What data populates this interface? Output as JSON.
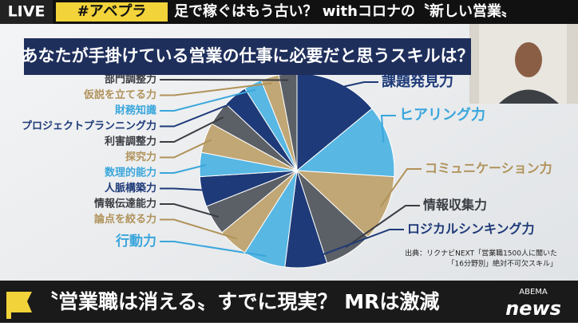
{
  "header": {
    "live": "LIVE",
    "tag": "#アベプラ",
    "headline": "足で稼ぐはもう古い？ withコロナの〝新しい営業〟"
  },
  "chart_data": {
    "type": "pie",
    "title": "あなたが手掛けている営業の仕事に必要だと思うスキルは？",
    "categories": [
      "課題発見力",
      "ヒアリング力",
      "コミュニケーション力",
      "情報収集力",
      "ロジカルシンキング力",
      "行動力",
      "論点を絞る力",
      "情報伝達能力",
      "人脈構築力",
      "数理的能力",
      "探究力",
      "利害調整力",
      "プロジェクトプランニング力",
      "財務知識",
      "仮説を立てる力",
      "部門調整力"
    ],
    "values": [
      14,
      12,
      11,
      8,
      7,
      7,
      5,
      5,
      5,
      4,
      5,
      4,
      4,
      3,
      3,
      3
    ],
    "colors": [
      "#1e3a78",
      "#58b7e3",
      "#c1a775",
      "#5b5f66",
      "#1e3a78",
      "#58b7e3",
      "#c1a775",
      "#5b5f66",
      "#1e3a78",
      "#58b7e3",
      "#c1a775",
      "#5b5f66",
      "#1e3a78",
      "#58b7e3",
      "#c1a775",
      "#5b5f66"
    ],
    "source": [
      "出典：リクナビNEXT「営業職1500人に聞いた",
      "「16分野別」絶対不可欠スキル」"
    ]
  },
  "footer": {
    "headline": "〝営業職は消える〟すでに現実？ MRは激減",
    "logo_top": "ABEMA",
    "logo_bottom": "news"
  }
}
